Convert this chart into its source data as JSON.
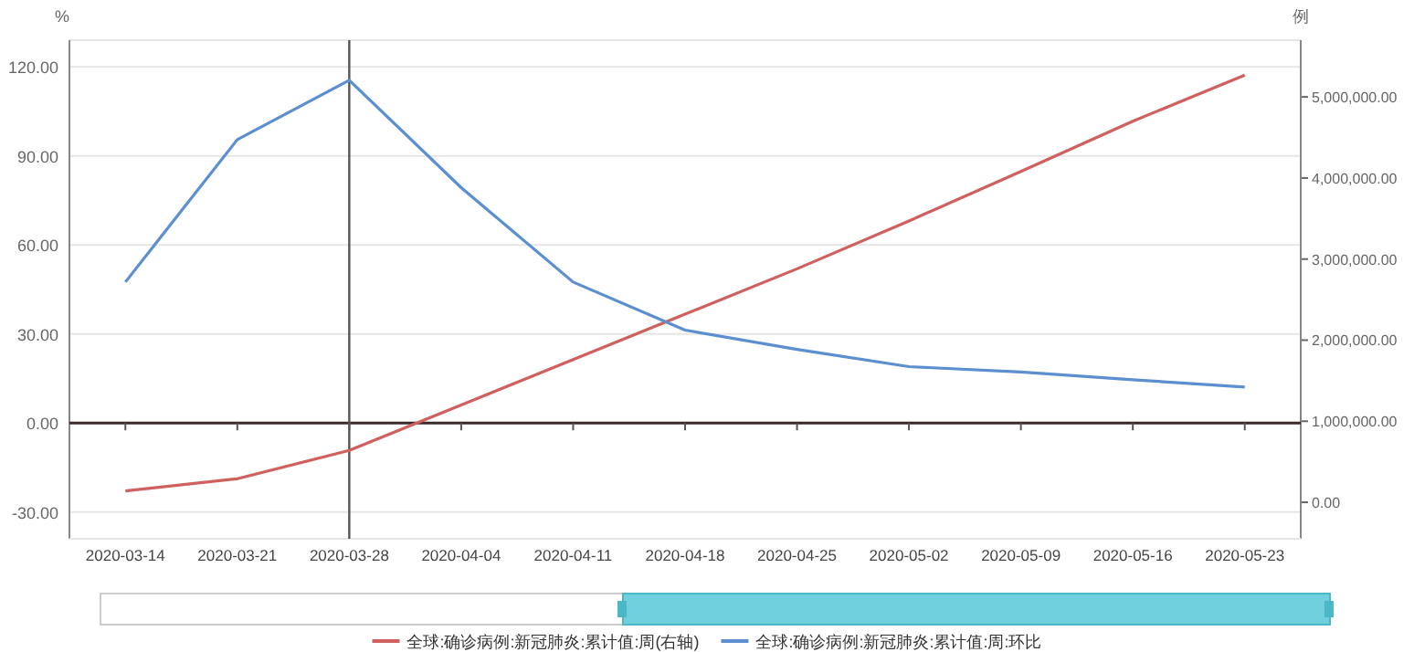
{
  "chart_data": {
    "type": "line",
    "categories": [
      "2020-03-14",
      "2020-03-21",
      "2020-03-28",
      "2020-04-04",
      "2020-04-11",
      "2020-04-18",
      "2020-04-25",
      "2020-05-02",
      "2020-05-09",
      "2020-05-16",
      "2020-05-23"
    ],
    "series": [
      {
        "name": "全球:确诊病例:新冠肺炎:累计值:周(右轴)",
        "color": "#d0605e",
        "axis": "y2",
        "values": [
          140000,
          290000,
          640000,
          1200000,
          1760000,
          2320000,
          2880000,
          3470000,
          4080000,
          4700000,
          5270000
        ]
      },
      {
        "name": "全球:确诊病例:新冠肺炎:累计值:周:环比",
        "color": "#5b8fd0",
        "values": [
          47.5,
          95.5,
          115.5,
          79.3,
          47.5,
          31.3,
          24.8,
          19.0,
          17.2,
          14.6,
          12.1
        ]
      }
    ],
    "ylabel": "%",
    "y2label": "例",
    "ylim": [
      -39,
      129
    ],
    "yticks": [
      {
        "value": -30,
        "label": "-30.00"
      },
      {
        "value": 0,
        "label": "0.00"
      },
      {
        "value": 30,
        "label": "30.00"
      },
      {
        "value": 60,
        "label": "60.00"
      },
      {
        "value": 90,
        "label": "90.00"
      },
      {
        "value": 120,
        "label": "120.00"
      }
    ],
    "y2lim": [
      -450000,
      5700000
    ],
    "y2ticks": [
      {
        "value": 0,
        "label": "0.00"
      },
      {
        "value": 1000000,
        "label": "1,000,000.00"
      },
      {
        "value": 2000000,
        "label": "2,000,000.00"
      },
      {
        "value": 3000000,
        "label": "3,000,000.00"
      },
      {
        "value": 4000000,
        "label": "4,000,000.00"
      },
      {
        "value": 5000000,
        "label": "5,000,000.00"
      }
    ],
    "ref_lines": [
      {
        "axis": "x",
        "value": "2020-03-28",
        "color": "#555555"
      }
    ],
    "grid": "y",
    "legend": "bottom"
  }
}
